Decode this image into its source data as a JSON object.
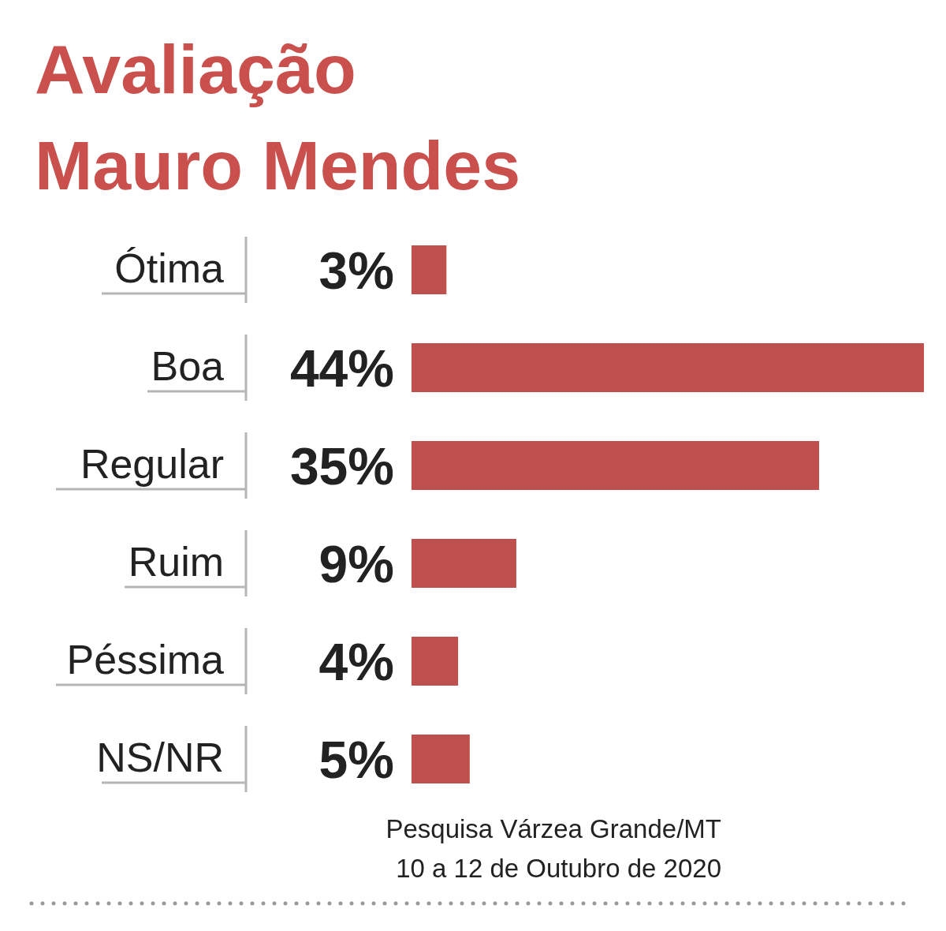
{
  "chart_data": {
    "type": "bar",
    "orientation": "horizontal",
    "title": "Avaliação Mauro Mendes",
    "categories": [
      "Ótima",
      "Boa",
      "Regular",
      "Ruim",
      "Péssima",
      "NS/NR"
    ],
    "values": [
      3,
      44,
      35,
      9,
      4,
      5
    ],
    "color": "#c0504d",
    "data_labels": true,
    "value_labels": [
      "3%",
      "44%",
      "35%",
      "9%",
      "4%",
      "5%"
    ],
    "annotations": [
      "Pesquisa Várzea Grande/MT",
      "10 a 12 de Outubro de 2020"
    ]
  }
}
